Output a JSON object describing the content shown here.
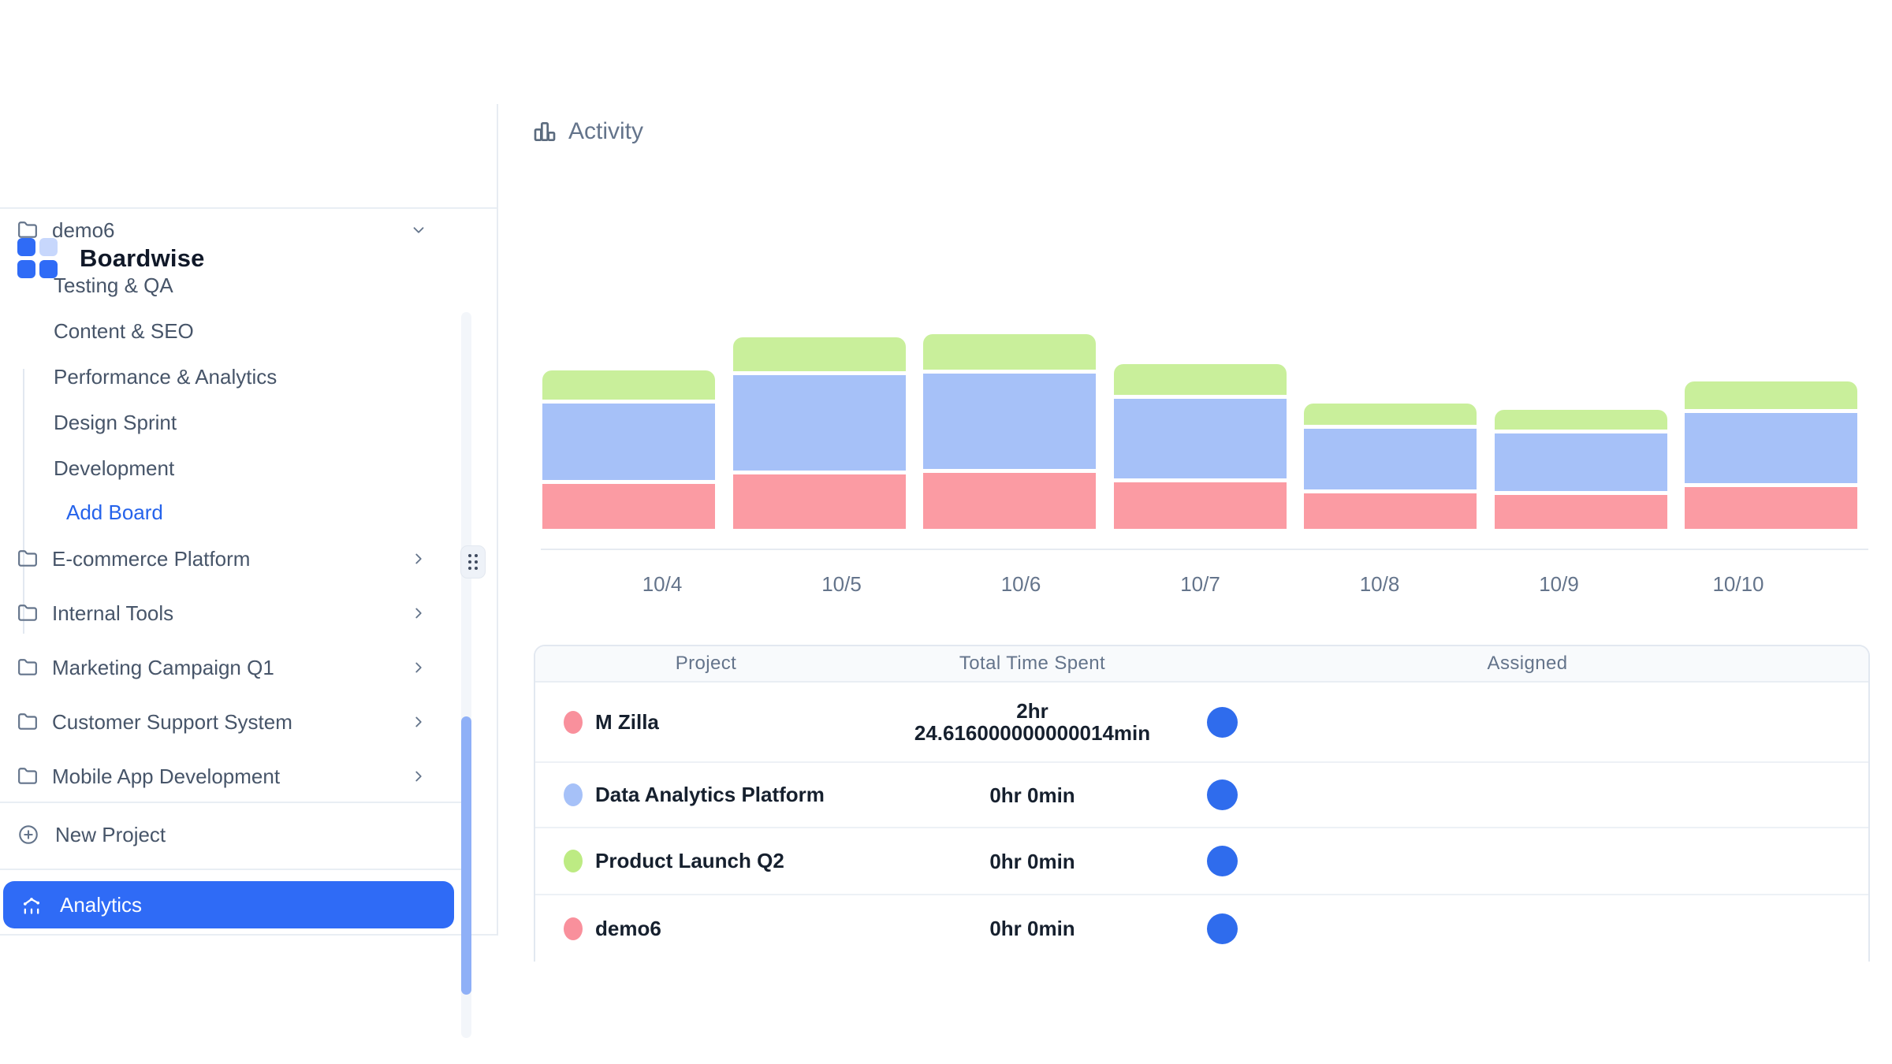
{
  "brand": {
    "name": "Boardwise"
  },
  "colors": {
    "accent": "#2f6bf6",
    "logo_light": "#c7d7fc",
    "bar_red": "#fb9ba3",
    "bar_blue": "#a6c1f8",
    "bar_green": "#c9ef9b",
    "dot_pink": "#f9909c",
    "dot_blue": "#a6c1f8",
    "dot_green": "#bdeb83",
    "avatar_blue": "#2f6ced",
    "scrollbar": "#8fb0f7",
    "muted_text": "#64748b",
    "border": "#e2e8f0"
  },
  "sidebar": {
    "project_group": {
      "label": "demo6",
      "state": "expanded",
      "boards": [
        "Testing & QA",
        "Content & SEO",
        "Performance & Analytics",
        "Design Sprint",
        "Development"
      ],
      "add_board_label": "Add Board"
    },
    "projects": [
      "E-commerce Platform",
      "Internal Tools",
      "Marketing Campaign Q1",
      "Customer Support System",
      "Mobile App Development"
    ],
    "new_project_label": "New Project",
    "analytics_label": "Analytics"
  },
  "main": {
    "header_title": "Activity"
  },
  "chart_data": {
    "type": "bar",
    "stacked": true,
    "title": "Activity",
    "categories": [
      "10/4",
      "10/5",
      "10/6",
      "10/7",
      "10/8",
      "10/9",
      "10/10"
    ],
    "series": [
      {
        "name": "M Zilla",
        "color": "#fb9ba3",
        "values": [
          57,
          69,
          71,
          59,
          45,
          43,
          53
        ]
      },
      {
        "name": "Data Analytics Platform",
        "color": "#a6c1f8",
        "values": [
          97,
          121,
          121,
          101,
          77,
          73,
          89
        ]
      },
      {
        "name": "Product Launch Q2",
        "color": "#c9ef9b",
        "values": [
          37,
          43,
          45,
          39,
          27,
          25,
          35
        ]
      }
    ],
    "units": "relative (estimated from bar pixel heights; no y-axis labels shown)",
    "xlabel": "",
    "ylabel": "",
    "legend": "none",
    "grid": false
  },
  "table": {
    "columns": [
      "Project",
      "Total Time Spent",
      "Assigned"
    ],
    "rows": [
      {
        "project": "M Zilla",
        "dot_color": "#f9909c",
        "time_lines": [
          "2hr",
          "24.616000000000014min"
        ],
        "assigned": "avatar"
      },
      {
        "project": "Data Analytics Platform",
        "dot_color": "#a6c1f8",
        "time_lines": [
          "0hr 0min"
        ],
        "assigned": "avatar"
      },
      {
        "project": "Product Launch Q2",
        "dot_color": "#bdeb83",
        "time_lines": [
          "0hr 0min"
        ],
        "assigned": "avatar"
      },
      {
        "project": "demo6",
        "dot_color": "#f9909c",
        "time_lines": [
          "0hr 0min"
        ],
        "assigned": "avatar"
      }
    ]
  }
}
